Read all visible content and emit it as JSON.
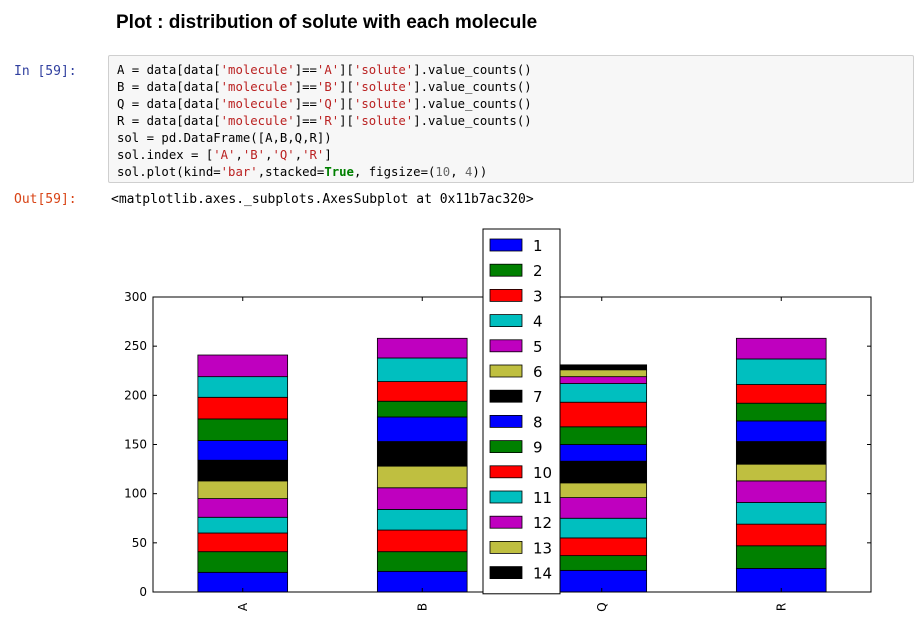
{
  "heading": "Plot : distribution of solute with each molecule",
  "input_prompt": "In [59]:",
  "output_prompt": "Out[59]:",
  "output_text": "<matplotlib.axes._subplots.AxesSubplot at 0x11b7ac320>",
  "code_lines": [
    [
      {
        "t": "A = data[data["
      },
      {
        "t": "'molecule'",
        "c": "str"
      },
      {
        "t": "]=="
      },
      {
        "t": "'A'",
        "c": "str"
      },
      {
        "t": "]["
      },
      {
        "t": "'solute'",
        "c": "str"
      },
      {
        "t": "].value_counts()"
      }
    ],
    [
      {
        "t": "B = data[data["
      },
      {
        "t": "'molecule'",
        "c": "str"
      },
      {
        "t": "]=="
      },
      {
        "t": "'B'",
        "c": "str"
      },
      {
        "t": "]["
      },
      {
        "t": "'solute'",
        "c": "str"
      },
      {
        "t": "].value_counts()"
      }
    ],
    [
      {
        "t": "Q = data[data["
      },
      {
        "t": "'molecule'",
        "c": "str"
      },
      {
        "t": "]=="
      },
      {
        "t": "'Q'",
        "c": "str"
      },
      {
        "t": "]["
      },
      {
        "t": "'solute'",
        "c": "str"
      },
      {
        "t": "].value_counts()"
      }
    ],
    [
      {
        "t": "R = data[data["
      },
      {
        "t": "'molecule'",
        "c": "str"
      },
      {
        "t": "]=="
      },
      {
        "t": "'R'",
        "c": "str"
      },
      {
        "t": "]["
      },
      {
        "t": "'solute'",
        "c": "str"
      },
      {
        "t": "].value_counts()"
      }
    ],
    [
      {
        "t": "sol = pd.DataFrame([A,B,Q,R])"
      }
    ],
    [
      {
        "t": "sol.index = ["
      },
      {
        "t": "'A'",
        "c": "str"
      },
      {
        "t": ","
      },
      {
        "t": "'B'",
        "c": "str"
      },
      {
        "t": ","
      },
      {
        "t": "'Q'",
        "c": "str"
      },
      {
        "t": ","
      },
      {
        "t": "'R'",
        "c": "str"
      },
      {
        "t": "]"
      }
    ],
    [
      {
        "t": "sol.plot(kind="
      },
      {
        "t": "'bar'",
        "c": "str"
      },
      {
        "t": ",stacked="
      },
      {
        "t": "True",
        "c": "kw"
      },
      {
        "t": ", figsize=("
      },
      {
        "t": "10",
        "c": "num"
      },
      {
        "t": ", "
      },
      {
        "t": "4",
        "c": "num"
      },
      {
        "t": "))"
      }
    ]
  ],
  "chart_data": {
    "type": "bar",
    "stacked": true,
    "categories": [
      "A",
      "B",
      "Q",
      "R"
    ],
    "ylim": [
      0,
      300
    ],
    "yticks": [
      0,
      50,
      100,
      150,
      200,
      250,
      300
    ],
    "legend": "top-center",
    "series": [
      {
        "name": "1",
        "color": "#0000ff",
        "values": [
          20,
          21,
          22,
          24
        ]
      },
      {
        "name": "2",
        "color": "#008000",
        "values": [
          21,
          20,
          15,
          23
        ]
      },
      {
        "name": "3",
        "color": "#ff0000",
        "values": [
          19,
          22,
          18,
          22
        ]
      },
      {
        "name": "4",
        "color": "#00bfbf",
        "values": [
          16,
          21,
          20,
          22
        ]
      },
      {
        "name": "5",
        "color": "#bf00bf",
        "values": [
          19,
          22,
          21,
          22
        ]
      },
      {
        "name": "6",
        "color": "#bfbf40",
        "values": [
          18,
          22,
          15,
          17
        ]
      },
      {
        "name": "7",
        "color": "#000000",
        "values": [
          21,
          25,
          22,
          23
        ]
      },
      {
        "name": "8",
        "color": "#0000ff",
        "values": [
          20,
          25,
          17,
          21
        ]
      },
      {
        "name": "9",
        "color": "#008000",
        "values": [
          22,
          16,
          18,
          18
        ]
      },
      {
        "name": "10",
        "color": "#ff0000",
        "values": [
          22,
          20,
          25,
          19
        ]
      },
      {
        "name": "11",
        "color": "#00bfbf",
        "values": [
          21,
          24,
          19,
          26
        ]
      },
      {
        "name": "12",
        "color": "#bf00bf",
        "values": [
          22,
          20,
          7,
          21
        ]
      },
      {
        "name": "13",
        "color": "#bfbf40",
        "values": [
          0,
          0,
          7,
          0
        ]
      },
      {
        "name": "14",
        "color": "#000000",
        "values": [
          0,
          0,
          5,
          0
        ]
      }
    ]
  }
}
